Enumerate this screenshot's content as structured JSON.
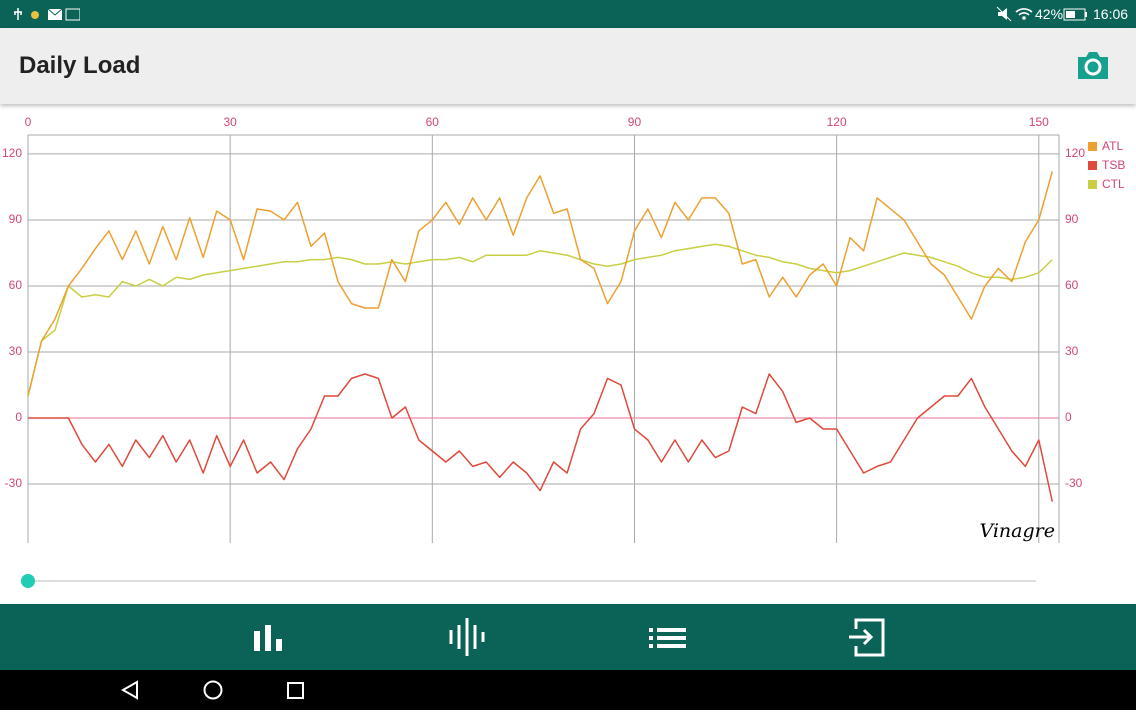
{
  "status_bar": {
    "battery": "42%",
    "time": "16:06"
  },
  "app_bar": {
    "title": "Daily Load"
  },
  "chart_data": {
    "type": "line",
    "annotation": "Vinagre",
    "x": [
      0,
      2,
      4,
      6,
      8,
      10,
      12,
      14,
      16,
      18,
      20,
      22,
      24,
      26,
      28,
      30,
      32,
      34,
      36,
      38,
      40,
      42,
      44,
      46,
      48,
      50,
      52,
      54,
      56,
      58,
      60,
      62,
      64,
      66,
      68,
      70,
      72,
      74,
      76,
      78,
      80,
      82,
      84,
      86,
      88,
      90,
      92,
      94,
      96,
      98,
      100,
      102,
      104,
      106,
      108,
      110,
      112,
      114,
      116,
      118,
      120,
      122,
      124,
      126,
      128,
      130,
      132,
      134,
      136,
      138,
      140,
      142,
      144,
      146,
      148,
      150,
      152
    ],
    "series": [
      {
        "name": "ATL",
        "color": "#eda030",
        "values": [
          10,
          35,
          45,
          60,
          68,
          77,
          85,
          72,
          85,
          70,
          87,
          72,
          91,
          73,
          94,
          90,
          72,
          95,
          94,
          90,
          98,
          78,
          84,
          62,
          52,
          50,
          50,
          72,
          62,
          85,
          90,
          98,
          88,
          100,
          90,
          100,
          83,
          100,
          110,
          93,
          95,
          72,
          68,
          52,
          62,
          85,
          95,
          82,
          98,
          90,
          100,
          100,
          93,
          70,
          72,
          55,
          64,
          55,
          65,
          70,
          60,
          82,
          76,
          100,
          95,
          90,
          80,
          70,
          65,
          55,
          45,
          60,
          68,
          62,
          80,
          90,
          112
        ]
      },
      {
        "name": "TSB",
        "color": "#de4a3c",
        "values": [
          0,
          0,
          0,
          0,
          -12,
          -20,
          -12,
          -22,
          -10,
          -18,
          -8,
          -20,
          -10,
          -25,
          -8,
          -22,
          -10,
          -25,
          -20,
          -28,
          -14,
          -5,
          10,
          10,
          18,
          20,
          18,
          0,
          5,
          -10,
          -15,
          -20,
          -15,
          -22,
          -20,
          -27,
          -20,
          -25,
          -33,
          -20,
          -25,
          -5,
          2,
          18,
          15,
          -5,
          -10,
          -20,
          -10,
          -20,
          -10,
          -18,
          -15,
          5,
          2,
          20,
          12,
          -2,
          0,
          -5,
          -5,
          -15,
          -25,
          -22,
          -20,
          -10,
          0,
          5,
          10,
          10,
          18,
          5,
          -5,
          -15,
          -22,
          -10,
          -38
        ]
      },
      {
        "name": "CTL",
        "color": "#c9cf45",
        "values": [
          10,
          35,
          40,
          60,
          55,
          56,
          55,
          62,
          60,
          63,
          60,
          64,
          63,
          65,
          66,
          67,
          68,
          69,
          70,
          71,
          71,
          72,
          72,
          73,
          72,
          70,
          70,
          71,
          70,
          71,
          72,
          72,
          73,
          71,
          74,
          74,
          74,
          74,
          76,
          75,
          74,
          72,
          70,
          69,
          70,
          72,
          73,
          74,
          76,
          77,
          78,
          79,
          78,
          76,
          74,
          73,
          71,
          70,
          68,
          67,
          66,
          67,
          69,
          71,
          73,
          75,
          74,
          73,
          71,
          69,
          66,
          64,
          64,
          63,
          64,
          66,
          72
        ]
      }
    ],
    "xlim": [
      0,
      153
    ],
    "xticks": [
      0,
      30,
      60,
      90,
      120,
      150
    ],
    "ylim": [
      -56.8,
      128.6
    ],
    "yticks": [
      -30,
      0,
      30,
      60,
      90,
      120
    ],
    "y2lim": [
      -56.8,
      128.6
    ],
    "y2ticks": [
      -30,
      0,
      30,
      60,
      90,
      120
    ],
    "grid": true,
    "legend": "right"
  }
}
